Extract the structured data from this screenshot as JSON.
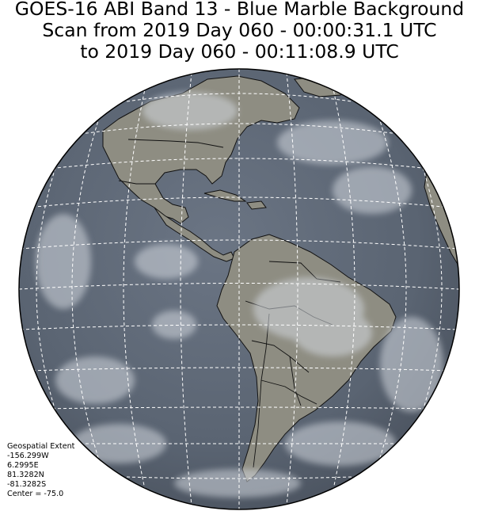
{
  "title": {
    "line1": "GOES-16 ABI Band 13 - Blue Marble Background",
    "line2": "Scan from 2019 Day 060 - 00:00:31.1 UTC",
    "line3": "to 2019 Day 060 - 00:11:08.9 UTC"
  },
  "geospatial_extent": {
    "heading": "Geospatial Extent",
    "west": "-156.299W",
    "east": "6.2995E",
    "north": "81.3282N",
    "south": "-81.3282S",
    "center": "Center = -75.0"
  },
  "colors": {
    "ocean": "#5f6a78",
    "land": "#8f8e82",
    "cloud": "#c9cfd8",
    "border": "#000000",
    "grid": "#ffffff"
  }
}
